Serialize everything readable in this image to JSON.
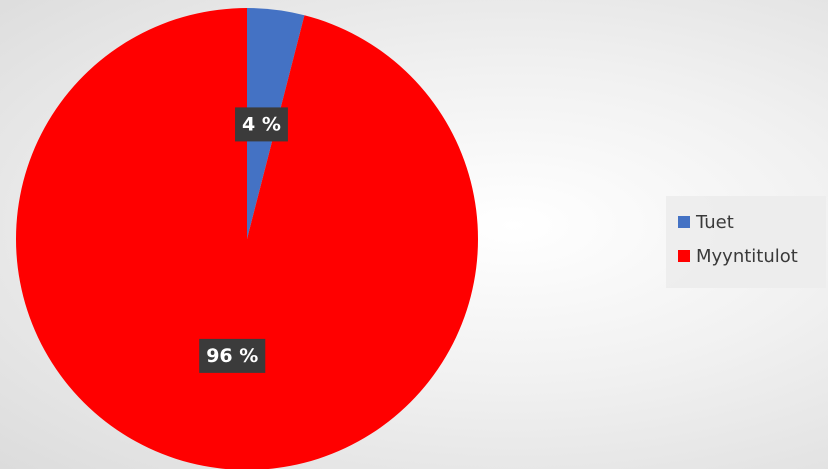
{
  "chart_data": {
    "type": "pie",
    "title": "",
    "categories": [
      "Tuet",
      "Myyntitulot"
    ],
    "values": [
      4,
      96
    ],
    "labels": [
      "4 %",
      "96 %"
    ],
    "colors": [
      "#4472c4",
      "#ff0000"
    ],
    "legend_position": "right",
    "start_angle": "12 o'clock, clockwise"
  }
}
